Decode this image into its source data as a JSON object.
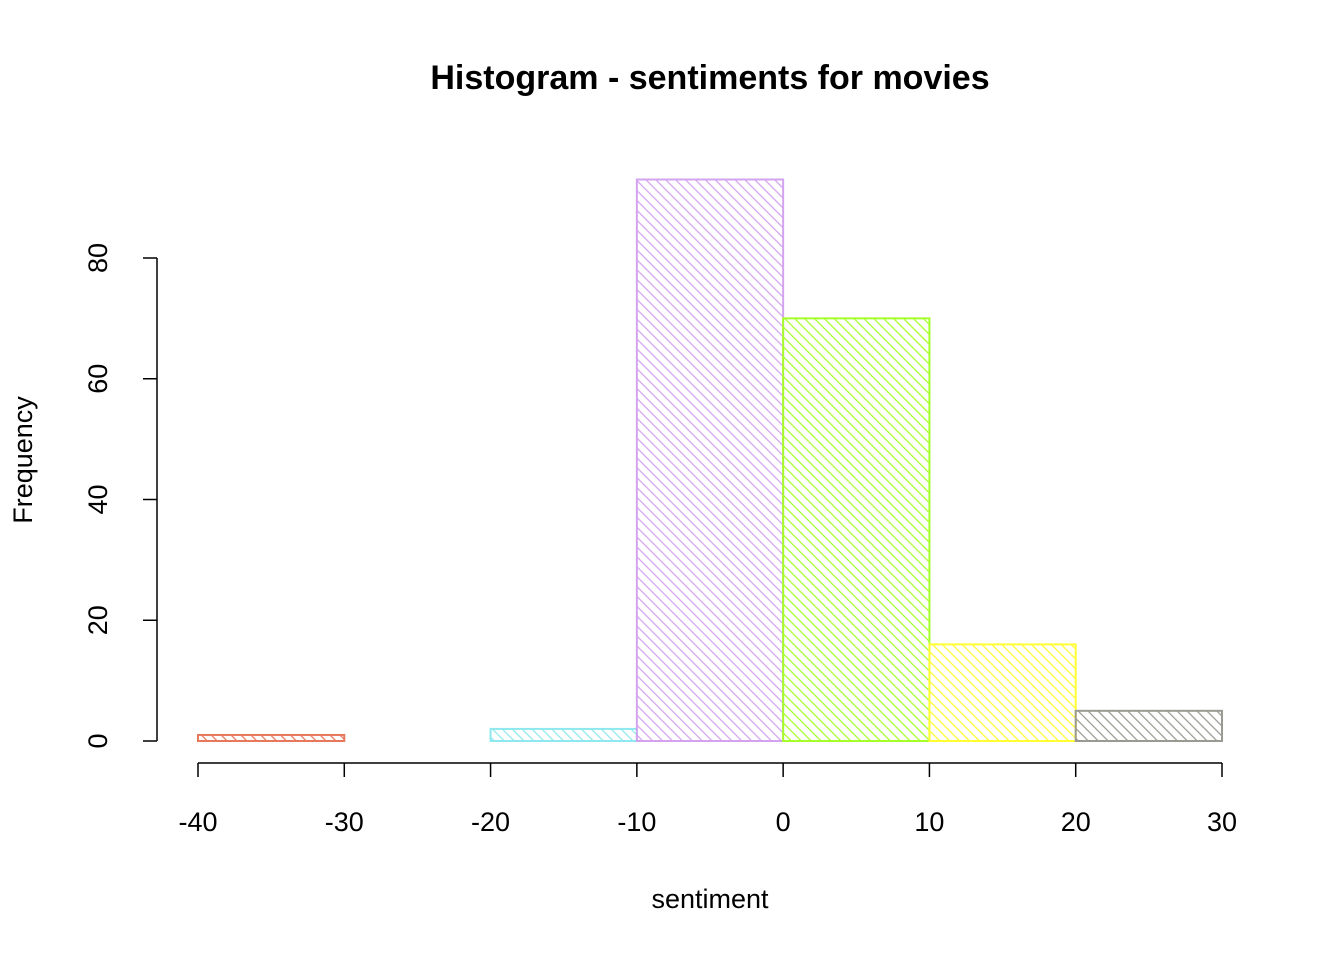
{
  "chart_data": {
    "type": "histogram",
    "title": "Histogram - sentiments for movies",
    "x_label": "sentiment",
    "y_label": "Frequency",
    "bins": [
      -40,
      -30,
      -20,
      -10,
      0,
      10,
      20,
      30
    ],
    "values": [
      1,
      0,
      2,
      93,
      70,
      16,
      5
    ],
    "colors": [
      "#e8785c",
      "#a6e88a",
      "#8ee8ee",
      "#d4a3f0",
      "#a6ff2a",
      "#ffff33",
      "#9a9a92"
    ],
    "xlim": [
      -40,
      30
    ],
    "ylim": [
      0,
      93
    ],
    "xticks": [
      -40,
      -30,
      -20,
      -10,
      0,
      10,
      20,
      30
    ],
    "yticks": [
      0,
      20,
      40,
      60,
      80
    ],
    "hatched": true
  }
}
